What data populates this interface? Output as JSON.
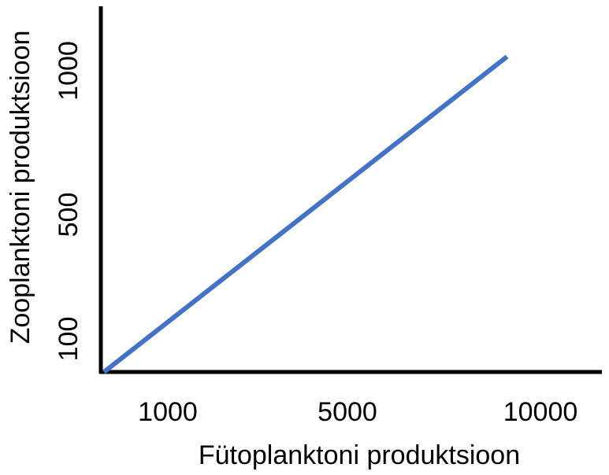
{
  "chart_data": {
    "type": "line",
    "xlabel": "Fütoplanktoni produktsioon",
    "ylabel": "Zooplanktoni produktsioon",
    "x_ticks": [
      "1000",
      "5000",
      "10000"
    ],
    "y_ticks": [
      "100",
      "500",
      "1000"
    ],
    "grid": false,
    "legend": "none",
    "line_color": "#4472C4",
    "series": [
      {
        "x_tick_fraction": [
          0.0,
          0.84
        ],
        "y_tick_fraction": [
          0.0,
          1.0
        ]
      }
    ]
  }
}
